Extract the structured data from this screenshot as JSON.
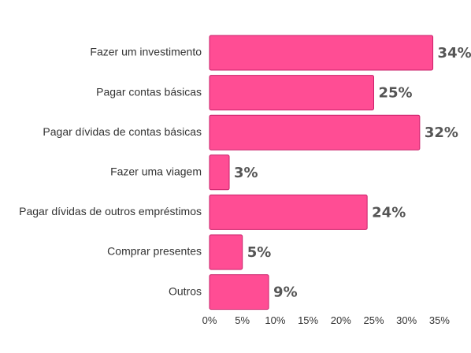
{
  "chart_data": {
    "type": "bar",
    "orientation": "horizontal",
    "categories": [
      "Fazer um investimento",
      "Pagar contas básicas",
      "Pagar dívidas de contas básicas",
      "Fazer uma viagem",
      "Pagar dívidas de outros empréstimos",
      "Comprar presentes",
      "Outros"
    ],
    "values": [
      34,
      25,
      32,
      3,
      24,
      5,
      9
    ],
    "value_labels": [
      "34%",
      "25%",
      "32%",
      "3%",
      "24%",
      "5%",
      "9%"
    ],
    "x_ticks": [
      "0%",
      "5%",
      "10%",
      "15%",
      "20%",
      "25%",
      "30%",
      "35%"
    ],
    "x_tick_values": [
      0,
      5,
      10,
      15,
      20,
      25,
      30,
      35
    ],
    "xlim": [
      0,
      35
    ],
    "title": "",
    "xlabel": "",
    "ylabel": "",
    "grid": false,
    "legend": "none",
    "bar_color": "#ff4d94"
  }
}
